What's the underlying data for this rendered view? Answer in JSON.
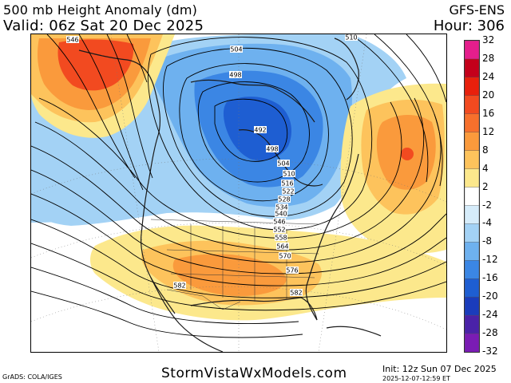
{
  "header": {
    "title": "500 mb Height Anomaly (dm)",
    "valid": "Valid: 06z Sat 20 Dec 2025",
    "model": "GFS-ENS",
    "hour": "Hour: 306"
  },
  "colorbar": {
    "labels": [
      "32",
      "28",
      "24",
      "20",
      "16",
      "12",
      "8",
      "4",
      "2",
      "-2",
      "-4",
      "-8",
      "-12",
      "-16",
      "-20",
      "-24",
      "-28",
      "-32"
    ],
    "colors": [
      "#e51e8c",
      "#c4001b",
      "#e8200c",
      "#f24a20",
      "#f7702c",
      "#fa9a3c",
      "#fdc35c",
      "#fce88c",
      "#ffffff",
      "#d6ecfa",
      "#a3d2f5",
      "#6eb1ef",
      "#3b86e4",
      "#1e5ed2",
      "#1a3cbc",
      "#4a22a8",
      "#7a1cb4"
    ]
  },
  "map": {
    "contour_labels": [
      "546",
      "504",
      "498",
      "492",
      "498",
      "504",
      "510",
      "516",
      "522",
      "528",
      "534",
      "540",
      "546",
      "552",
      "558",
      "564",
      "570",
      "576",
      "582",
      "582",
      "510"
    ],
    "colors": {
      "warm_light": "#fce88c",
      "warm_mid": "#fdc35c",
      "warm_orange": "#fa9a3c",
      "warm_red": "#f24a20",
      "cool_light": "#a3d2f5",
      "cool_mid": "#6eb1ef",
      "cool_deep": "#3b86e4",
      "cool_core": "#1e5ed2"
    }
  },
  "footer": {
    "site": "StormVistaWxModels.com",
    "grads": "GrADS: COLA/IGES",
    "init": "Init: 12z Sun 07 Dec 2025",
    "stamp": "2025-12-07-12:59 ET"
  }
}
